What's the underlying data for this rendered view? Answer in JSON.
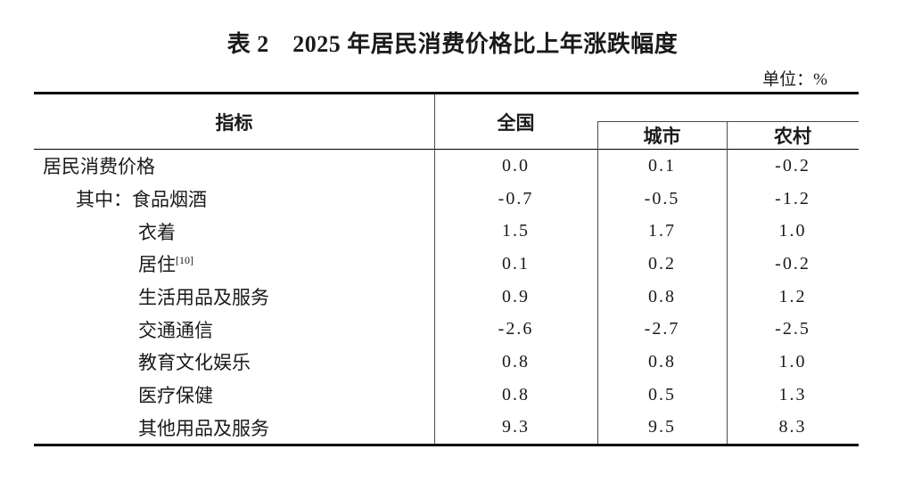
{
  "title": "表 2　2025 年居民消费价格比上年涨跌幅度",
  "unit_label": "单位：%",
  "table": {
    "columns": [
      "指标",
      "全国",
      "城市",
      "农村"
    ],
    "rows": [
      {
        "label": "居民消费价格",
        "sup": "",
        "indent": 0,
        "values": [
          "0.0",
          "0.1",
          "-0.2"
        ]
      },
      {
        "label": "其中：食品烟酒",
        "sup": "",
        "indent": 1,
        "values": [
          "-0.7",
          "-0.5",
          "-1.2"
        ]
      },
      {
        "label": "衣着",
        "sup": "",
        "indent": 2,
        "values": [
          "1.5",
          "1.7",
          "1.0"
        ]
      },
      {
        "label": "居住",
        "sup": "[10]",
        "indent": 2,
        "values": [
          "0.1",
          "0.2",
          "-0.2"
        ]
      },
      {
        "label": "生活用品及服务",
        "sup": "",
        "indent": 2,
        "values": [
          "0.9",
          "0.8",
          "1.2"
        ]
      },
      {
        "label": "交通通信",
        "sup": "",
        "indent": 2,
        "values": [
          "-2.6",
          "-2.7",
          "-2.5"
        ]
      },
      {
        "label": "教育文化娱乐",
        "sup": "",
        "indent": 2,
        "values": [
          "0.8",
          "0.8",
          "1.0"
        ]
      },
      {
        "label": "医疗保健",
        "sup": "",
        "indent": 2,
        "values": [
          "0.8",
          "0.5",
          "1.3"
        ]
      },
      {
        "label": "其他用品及服务",
        "sup": "",
        "indent": 2,
        "values": [
          "9.3",
          "9.5",
          "8.3"
        ]
      }
    ]
  },
  "colors": {
    "text": "#1a1a1a",
    "border_heavy": "#000000",
    "border_light": "#4a4a4a",
    "background": "#ffffff"
  }
}
